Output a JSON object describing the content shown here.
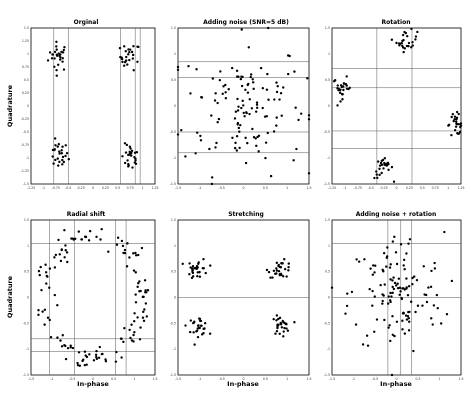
{
  "figure": {
    "ylabel": "Quadrature",
    "xlabel": "In-phase"
  },
  "chart_data": [
    {
      "type": "scatter",
      "title": "Orginal",
      "xlim": [
        -1.25,
        1.25
      ],
      "ylim": [
        -1.5,
        1.5
      ],
      "xticks": [
        -1.25,
        -1,
        -0.75,
        -0.5,
        -0.25,
        0,
        0.25,
        0.5,
        0.75,
        1,
        1.25
      ],
      "yticks": [
        1.5,
        1.25,
        1,
        0.75,
        0.5,
        0.25,
        0,
        -0.25,
        -0.5,
        -0.75,
        -1,
        -1.25,
        -1.5
      ],
      "vlines": [
        -0.79,
        -0.49,
        0.55,
        0.85,
        0.95
      ],
      "hlines": [],
      "clusters": [
        {
          "cx": -0.7,
          "cy": 0.95,
          "sx": 0.1,
          "sy": 0.14,
          "n": 28
        },
        {
          "cx": 0.75,
          "cy": 0.95,
          "sx": 0.1,
          "sy": 0.13,
          "n": 26
        },
        {
          "cx": -0.7,
          "cy": -0.95,
          "sx": 0.1,
          "sy": 0.13,
          "n": 26
        },
        {
          "cx": 0.75,
          "cy": -1.0,
          "sx": 0.09,
          "sy": 0.13,
          "n": 26
        }
      ]
    },
    {
      "type": "scatter",
      "title": "Adding noise (SNR=5 dB)",
      "xlim": [
        -1.5,
        1.5
      ],
      "ylim": [
        -1.5,
        1.5
      ],
      "xticks": [
        -1.5,
        -1,
        -0.5,
        0,
        0.5,
        1,
        1.5
      ],
      "yticks": [
        1.5,
        1,
        0.5,
        0,
        -0.5,
        -1,
        -1.5
      ],
      "vlines": [],
      "hlines": [
        0.85,
        0.55,
        -0.5,
        -0.9
      ],
      "clusters": [
        {
          "cx": 0,
          "cy": 0,
          "sx": 0.7,
          "sy": 0.65,
          "n": 130
        }
      ]
    },
    {
      "type": "scatter",
      "title": "Rotation",
      "xlim": [
        -1.25,
        1.25
      ],
      "ylim": [
        -1.5,
        1.5
      ],
      "xticks": [
        -1.25,
        -1,
        -0.75,
        -0.5,
        -0.25,
        0,
        0.25,
        0.5,
        0.75,
        1,
        1.25
      ],
      "yticks": [
        1.5,
        1,
        0.5,
        0,
        -0.5,
        -1,
        -1.5
      ],
      "vlines": [
        -0.38,
        0.3
      ],
      "hlines": [
        0.72,
        0.35,
        -0.48,
        -0.82
      ],
      "clusters": [
        {
          "cx": 0.2,
          "cy": 1.25,
          "sx": 0.1,
          "sy": 0.1,
          "n": 26
        },
        {
          "cx": -1.05,
          "cy": 0.35,
          "sx": 0.09,
          "sy": 0.1,
          "n": 26
        },
        {
          "cx": 1.15,
          "cy": -0.35,
          "sx": 0.09,
          "sy": 0.1,
          "n": 26
        },
        {
          "cx": -0.25,
          "cy": -1.2,
          "sx": 0.09,
          "sy": 0.1,
          "n": 26
        }
      ]
    },
    {
      "type": "scatter",
      "title": "Radial shift",
      "xlim": [
        -1.5,
        1.5
      ],
      "ylim": [
        -1.5,
        1.5
      ],
      "xticks": [
        -1.5,
        -1,
        -0.5,
        0,
        0.5,
        1,
        1.5
      ],
      "yticks": [
        1.5,
        1,
        0.5,
        0,
        -0.5,
        -1,
        -1.5
      ],
      "vlines": [
        -1.05,
        -0.45,
        0.55,
        0.8
      ],
      "hlines": [
        1.05,
        -0.8,
        -1.05
      ],
      "ring": {
        "r": 1.15,
        "rx": 1.2,
        "ry": 1.2,
        "spread": 0.09,
        "n": 140
      }
    },
    {
      "type": "scatter",
      "title": "Stretching",
      "xlim": [
        -1.5,
        1.5
      ],
      "ylim": [
        -1.5,
        1.5
      ],
      "xticks": [
        -1.5,
        -1,
        -0.5,
        0,
        0.5,
        1,
        1.5
      ],
      "yticks": [
        1.5,
        1,
        0.5,
        0,
        -0.5,
        -1,
        -1.5
      ],
      "vlines": [],
      "hlines": [
        0
      ],
      "clusters": [
        {
          "cx": -1.05,
          "cy": 0.55,
          "sx": 0.12,
          "sy": 0.1,
          "n": 30
        },
        {
          "cx": 0.85,
          "cy": 0.55,
          "sx": 0.14,
          "sy": 0.08,
          "n": 30
        },
        {
          "cx": -1.05,
          "cy": -0.55,
          "sx": 0.12,
          "sy": 0.09,
          "n": 30
        },
        {
          "cx": 0.85,
          "cy": -0.55,
          "sx": 0.1,
          "sy": 0.09,
          "n": 30
        }
      ]
    },
    {
      "type": "scatter",
      "title": "Adding noise + rotation",
      "xlim": [
        -1.5,
        1.5
      ],
      "ylim": [
        -1.5,
        1.5
      ],
      "xticks": [
        -1.5,
        -1,
        -0.5,
        0,
        0.5,
        1,
        1.5
      ],
      "yticks": [
        1.5,
        1,
        0.5,
        0,
        -0.5,
        -1,
        -1.5
      ],
      "vlines": [
        -0.2,
        0.1,
        0.35
      ],
      "hlines": [
        1.05,
        0
      ],
      "clusters": [
        {
          "cx": 0,
          "cy": 0.05,
          "sx": 0.55,
          "sy": 0.6,
          "n": 130
        }
      ]
    }
  ]
}
